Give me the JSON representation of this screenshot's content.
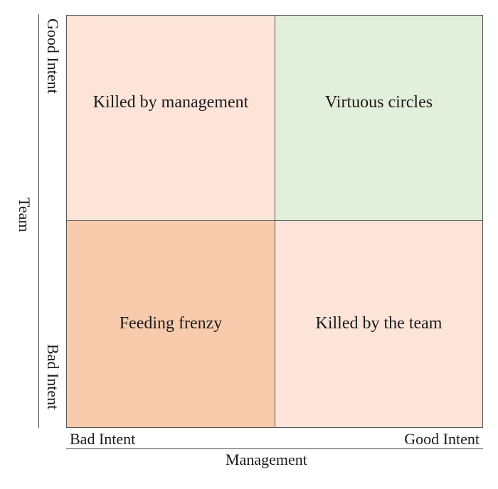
{
  "diagram": {
    "quadrants": {
      "top_left": {
        "label": "Killed by management",
        "color": "#fce4d8"
      },
      "top_right": {
        "label": "Virtuous circles",
        "color": "#e2efda"
      },
      "bottom_left": {
        "label": "Feeding frenzy",
        "color": "#f8cbad"
      },
      "bottom_right": {
        "label": "Killed by the team",
        "color": "#fce4d8"
      }
    },
    "y_axis": {
      "title": "Team",
      "top_label": "Good Intent",
      "bottom_label": "Bad Intent"
    },
    "x_axis": {
      "title": "Management",
      "left_label": "Bad Intent",
      "right_label": "Good Intent"
    }
  }
}
